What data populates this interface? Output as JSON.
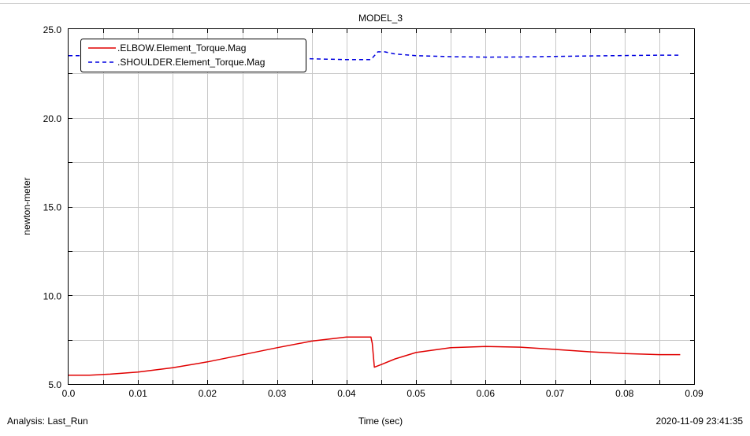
{
  "chart_data": {
    "type": "line",
    "title": "MODEL_3",
    "xlabel": "Time (sec)",
    "ylabel": "newton-meter",
    "xlim": [
      0.0,
      0.09
    ],
    "ylim": [
      5.0,
      25.0
    ],
    "x_ticks": [
      "0.0",
      "0.01",
      "0.02",
      "0.03",
      "0.04",
      "0.05",
      "0.06",
      "0.07",
      "0.08",
      "0.09"
    ],
    "y_ticks": [
      "5.0",
      "10.0",
      "15.0",
      "20.0",
      "25.0"
    ],
    "x_tick_values": [
      0.0,
      0.01,
      0.02,
      0.03,
      0.04,
      0.05,
      0.06,
      0.07,
      0.08,
      0.09
    ],
    "y_tick_values": [
      5.0,
      10.0,
      15.0,
      20.0,
      25.0
    ],
    "x_minor_step": 0.005,
    "y_minor_step": 2.5,
    "grid": true,
    "legend_position": "top-left",
    "series": [
      {
        "name": ".ELBOW.Element_Torque.Mag",
        "color": "#e00000",
        "style": "solid",
        "x": [
          0.0,
          0.003,
          0.006,
          0.01,
          0.015,
          0.02,
          0.025,
          0.03,
          0.035,
          0.04,
          0.0435,
          0.0437,
          0.044,
          0.045,
          0.047,
          0.05,
          0.055,
          0.06,
          0.065,
          0.07,
          0.075,
          0.08,
          0.085,
          0.088
        ],
        "y": [
          5.5,
          5.5,
          5.56,
          5.68,
          5.92,
          6.25,
          6.65,
          7.05,
          7.42,
          7.65,
          7.65,
          7.3,
          5.95,
          6.1,
          6.42,
          6.78,
          7.05,
          7.12,
          7.08,
          6.95,
          6.82,
          6.72,
          6.66,
          6.66
        ]
      },
      {
        "name": ".SHOULDER.Element_Torque.Mag",
        "color": "#0000e0",
        "style": "dashed",
        "x": [
          0.0,
          0.005,
          0.01,
          0.015,
          0.02,
          0.025,
          0.03,
          0.035,
          0.04,
          0.0435,
          0.044,
          0.0445,
          0.0455,
          0.047,
          0.05,
          0.055,
          0.06,
          0.065,
          0.07,
          0.075,
          0.08,
          0.085,
          0.088
        ],
        "y": [
          23.5,
          23.5,
          23.49,
          23.48,
          23.45,
          23.42,
          23.38,
          23.33,
          23.28,
          23.28,
          23.5,
          23.72,
          23.72,
          23.6,
          23.5,
          23.45,
          23.42,
          23.43,
          23.46,
          23.49,
          23.51,
          23.53,
          23.53
        ]
      }
    ]
  },
  "footer": {
    "analysis": "Analysis:  Last_Run",
    "timestamp": "2020-11-09 23:41:35"
  }
}
